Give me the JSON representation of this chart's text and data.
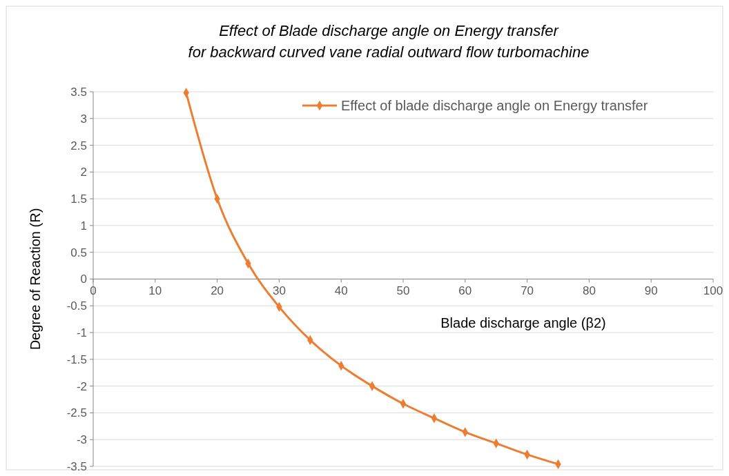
{
  "chart_data": {
    "type": "line",
    "title": "Effect of Blade discharge angle on Energy transfer\nfor backward curved vane radial outward  flow turbomachine",
    "xlabel": "Blade discharge angle (β2)",
    "ylabel": "Degree of Reaction (R)",
    "x": [
      15,
      20,
      25,
      30,
      35,
      40,
      45,
      50,
      55,
      60,
      65,
      70,
      75
    ],
    "series": [
      {
        "name": "Effect of blade discharge angle on Energy transfer",
        "color": "#ed7d31",
        "values": [
          3.48,
          1.5,
          0.29,
          -0.52,
          -1.14,
          -1.62,
          -2.0,
          -2.33,
          -2.6,
          -2.86,
          -3.07,
          -3.28,
          -3.46
        ]
      }
    ],
    "xlim": [
      0,
      100
    ],
    "xticks": [
      0,
      10,
      20,
      30,
      40,
      50,
      60,
      70,
      80,
      90,
      100
    ],
    "ylim": [
      -3.5,
      3.5
    ],
    "yticks": [
      -3.5,
      -3,
      -2.5,
      -2,
      -1.5,
      -1,
      -0.5,
      0,
      0.5,
      1,
      1.5,
      2,
      2.5,
      3,
      3.5
    ],
    "grid": "y",
    "legend": "top right",
    "marker": "diamond",
    "line_style": "solid"
  }
}
